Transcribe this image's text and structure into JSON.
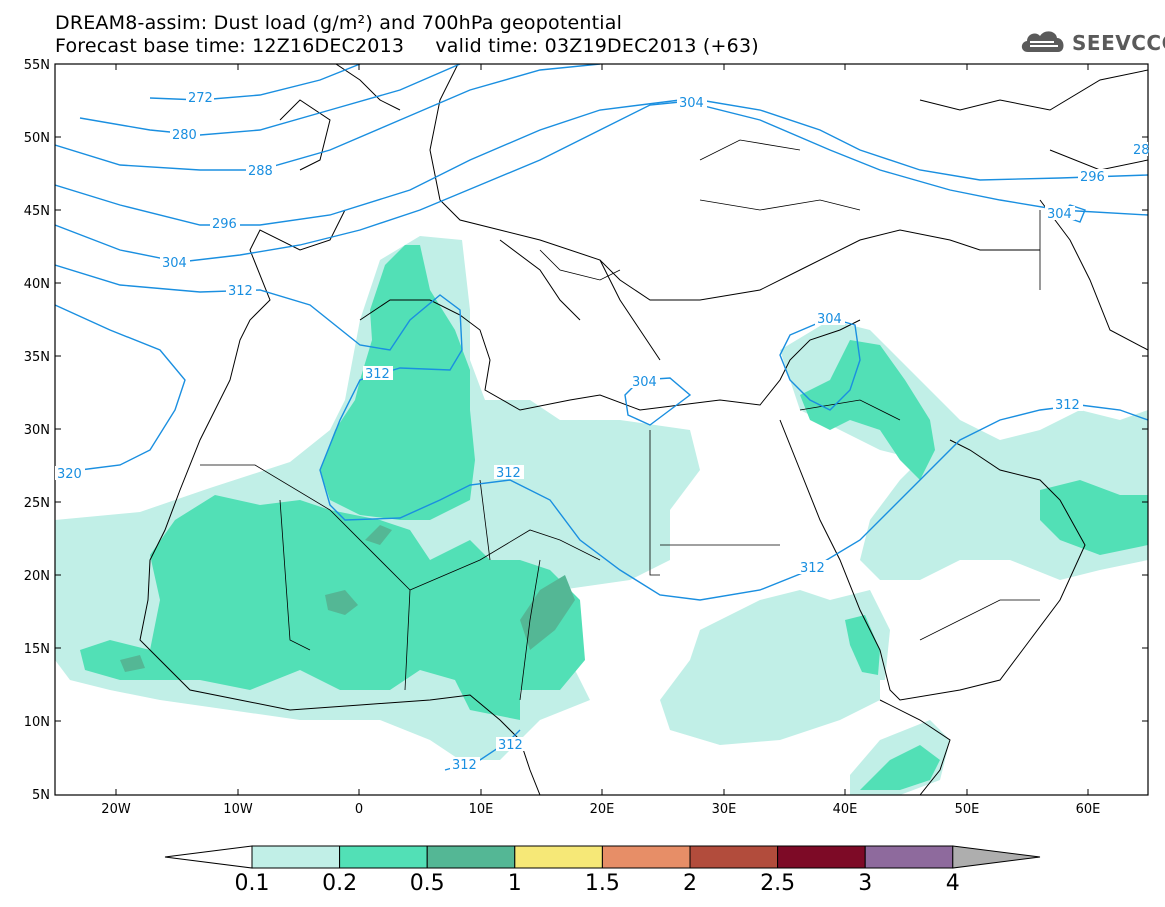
{
  "header": {
    "line1": "DREAM8-assim: Dust load (g/m²) and 700hPa geopotential",
    "line2": "Forecast base time: 12Z16DEC2013     valid time: 03Z19DEC2013 (+63)",
    "logo_text": "SEEVCCC"
  },
  "axes": {
    "lat_labels": [
      "55N",
      "50N",
      "45N",
      "40N",
      "35N",
      "30N",
      "25N",
      "20N",
      "15N",
      "10N",
      "5N"
    ],
    "lon_labels": [
      "20W",
      "10W",
      "0",
      "10E",
      "20E",
      "30E",
      "40E",
      "50E",
      "60E"
    ]
  },
  "contour_labels": [
    "272",
    "280",
    "288",
    "296",
    "304",
    "312",
    "312",
    "312",
    "312",
    "312",
    "304",
    "304",
    "304",
    "312",
    "296",
    "304",
    "28"
  ],
  "colorbar": {
    "labels": [
      "0.1",
      "0.2",
      "0.5",
      "1",
      "1.5",
      "2",
      "2.5",
      "3",
      "4"
    ],
    "colors": [
      "#c1efe7",
      "#52e0b6",
      "#54b795",
      "#f6e877",
      "#e78e67",
      "#b24c3c",
      "#7d0a26",
      "#8e6a9d",
      "#aeaeae"
    ]
  },
  "colors": {
    "dust_low": "#c1efe7",
    "dust_mid": "#52e0b6",
    "dust_high": "#54b795",
    "contour": "#1a8fe0"
  }
}
